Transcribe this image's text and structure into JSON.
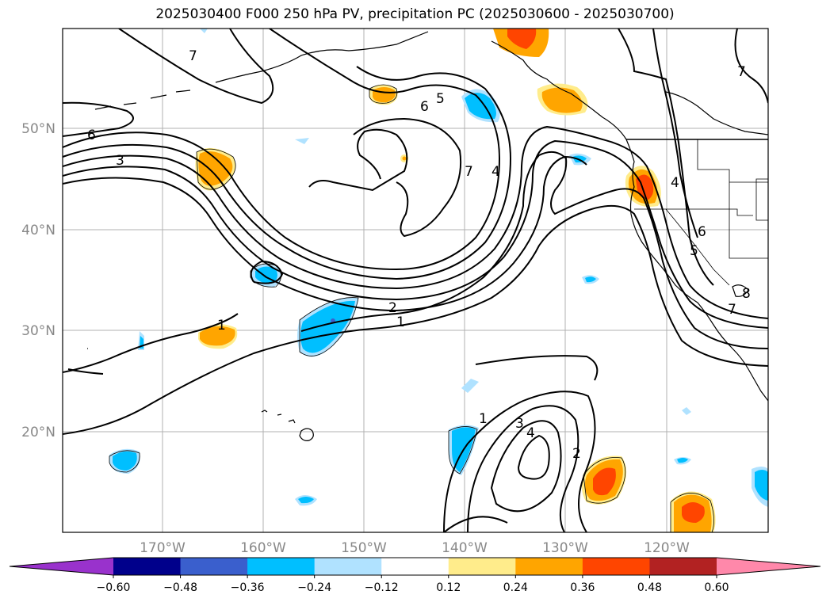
{
  "title": "2025030400 F000 250 hPa PV, precipitation PC (2025030600 - 2025030700)",
  "longitude_labels": [
    "170°W",
    "160°W",
    "150°W",
    "140°W",
    "130°W",
    "120°W"
  ],
  "latitude_labels": [
    "50°N",
    "40°N",
    "30°N",
    "20°N"
  ],
  "contour_labels": [
    "7",
    "6",
    "5",
    "6",
    "3",
    "4",
    "7",
    "4",
    "6",
    "5",
    "7",
    "2",
    "1",
    "1",
    "1",
    "3",
    "4",
    "2",
    "7",
    "8"
  ],
  "colorbar": {
    "labels": [
      "−0.60",
      "−0.48",
      "−0.36",
      "−0.24",
      "−0.12",
      "0.12",
      "0.24",
      "0.36",
      "0.48",
      "0.60"
    ],
    "colors": [
      "#9932cc",
      "#00008b",
      "#3a5fcd",
      "#00bfff",
      "#b0e2ff",
      "#ffffff",
      "#ffec8b",
      "#ffa500",
      "#ff4500",
      "#b22222",
      "#ff88aa"
    ]
  }
}
